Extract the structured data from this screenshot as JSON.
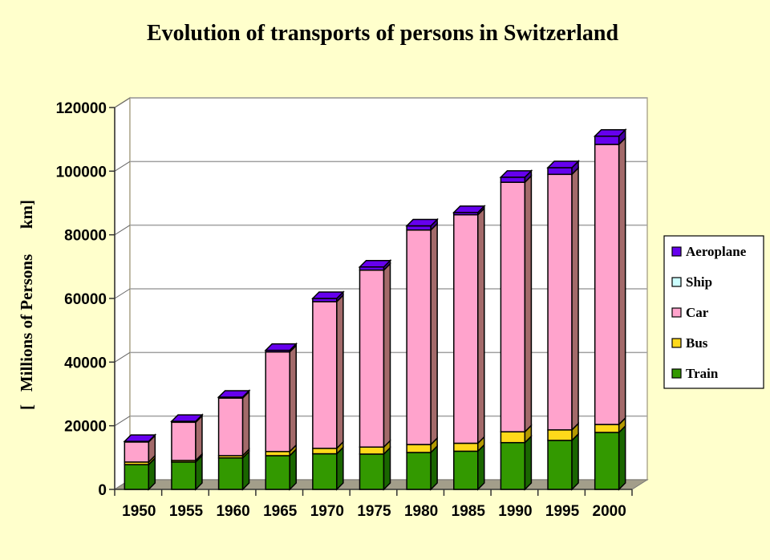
{
  "chart_data": {
    "type": "bar",
    "stacked": true,
    "three_d": true,
    "title": "Evolution of transports of persons in Switzerland",
    "xlabel": "",
    "ylabel": "[   Millions of Persons      km]",
    "ylim": [
      0,
      120000
    ],
    "yticks": [
      0,
      20000,
      40000,
      60000,
      80000,
      100000,
      120000
    ],
    "ytick_labels": [
      "0",
      "20000",
      "40000",
      "60000",
      "80000",
      "100000",
      "120000"
    ],
    "grid": true,
    "legend_position": "right",
    "categories": [
      "1950",
      "1955",
      "1960",
      "1965",
      "1970",
      "1975",
      "1980",
      "1985",
      "1990",
      "1995",
      "2000"
    ],
    "series": [
      {
        "name": "Train",
        "color": "#339900",
        "side": "#1a6600",
        "values": [
          7800,
          8600,
          9900,
          10600,
          11200,
          11100,
          11600,
          12000,
          14700,
          15400,
          17900
        ]
      },
      {
        "name": "Bus",
        "color": "#ffd91a",
        "side": "#b39900",
        "values": [
          800,
          500,
          700,
          1300,
          1700,
          2200,
          2500,
          2500,
          3400,
          3300,
          2500
        ]
      },
      {
        "name": "Car",
        "color": "#ffa3cc",
        "side": "#a36a6a",
        "values": [
          6300,
          12000,
          18100,
          31300,
          46100,
          55600,
          67400,
          71800,
          78400,
          80300,
          88000
        ]
      },
      {
        "name": "Ship",
        "color": "#ccffff",
        "side": "#8fb3b3",
        "values": [
          0,
          0,
          0,
          0,
          0,
          0,
          0,
          0,
          0,
          0,
          0
        ]
      },
      {
        "name": "Aeroplane",
        "color": "#6600ee",
        "side": "#4400a0",
        "values": [
          200,
          300,
          300,
          500,
          1000,
          1000,
          1300,
          700,
          1600,
          2100,
          2600
        ]
      }
    ],
    "legend_order": [
      "Aeroplane",
      "Ship",
      "Car",
      "Bus",
      "Train"
    ]
  },
  "colors": {
    "background": "#ffffcc",
    "plot_wall": "#ffffff",
    "floor": "#a39e8a",
    "gridline": "#a0a0a0"
  }
}
